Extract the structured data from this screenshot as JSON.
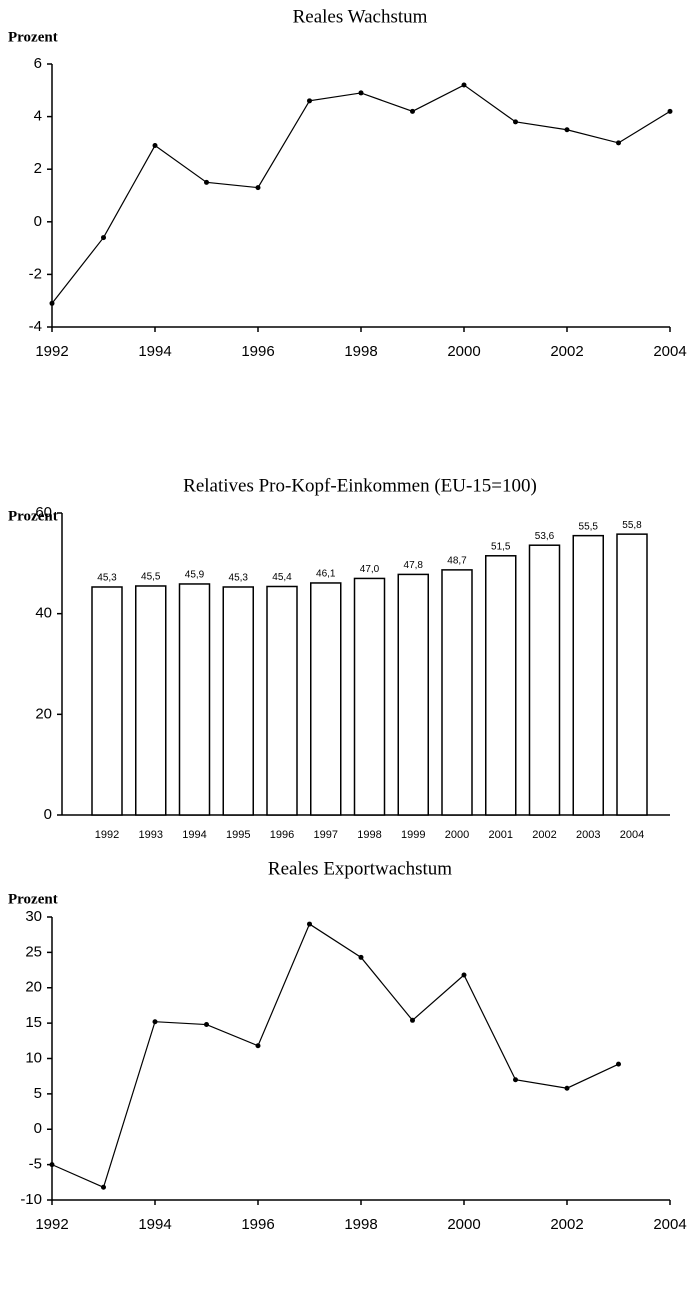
{
  "chart_data": [
    {
      "type": "line",
      "title": "Reales Wachstum",
      "y_label": "Prozent",
      "x": [
        1992,
        1993,
        1994,
        1995,
        1996,
        1997,
        1998,
        1999,
        2000,
        2001,
        2002,
        2003,
        2004
      ],
      "values": [
        -3.1,
        -0.6,
        2.9,
        1.5,
        1.3,
        4.6,
        4.9,
        4.2,
        5.2,
        3.8,
        3.5,
        3.0,
        4.2
      ],
      "color": "#000000",
      "xlim": [
        1992,
        2004
      ],
      "xticks": [
        1992,
        1994,
        1996,
        1998,
        2000,
        2002,
        2004
      ],
      "ylim": [
        -4,
        6
      ],
      "yticks": [
        -4,
        -2,
        0,
        2,
        4,
        6
      ]
    },
    {
      "type": "bar",
      "title": "Relatives Pro-Kopf-Einkommen (EU-15=100)",
      "y_label": "Prozent",
      "categories": [
        "1992",
        "1993",
        "1994",
        "1995",
        "1996",
        "1997",
        "1998",
        "1999",
        "2000",
        "2001",
        "2002",
        "2003",
        "2004"
      ],
      "values": [
        45.3,
        45.5,
        45.9,
        45.3,
        45.4,
        46.1,
        47.0,
        47.8,
        48.7,
        51.5,
        53.6,
        55.5,
        55.8
      ],
      "value_labels": [
        "45,3",
        "45,5",
        "45,9",
        "45,3",
        "45,4",
        "46,1",
        "47,0",
        "47,8",
        "48,7",
        "51,5",
        "53,6",
        "55,5",
        "55,8"
      ],
      "color": "#ffffff",
      "ylim": [
        0,
        60
      ],
      "yticks": [
        0,
        20,
        40,
        60
      ]
    },
    {
      "type": "line",
      "title": "Reales Exportwachstum",
      "y_label": "Prozent",
      "x": [
        1992,
        1993,
        1994,
        1995,
        1996,
        1997,
        1998,
        1999,
        2000,
        2001,
        2002,
        2003
      ],
      "values": [
        -5,
        -8.2,
        15.2,
        14.8,
        11.8,
        29,
        24.3,
        15.4,
        21.8,
        7,
        5.8,
        9.2
      ],
      "color": "#000000",
      "xlim": [
        1992,
        2004
      ],
      "xticks": [
        1992,
        1994,
        1996,
        1998,
        2000,
        2002,
        2004
      ],
      "ylim": [
        -10,
        30
      ],
      "yticks": [
        -10,
        -5,
        0,
        5,
        10,
        15,
        20,
        25,
        30
      ]
    }
  ]
}
